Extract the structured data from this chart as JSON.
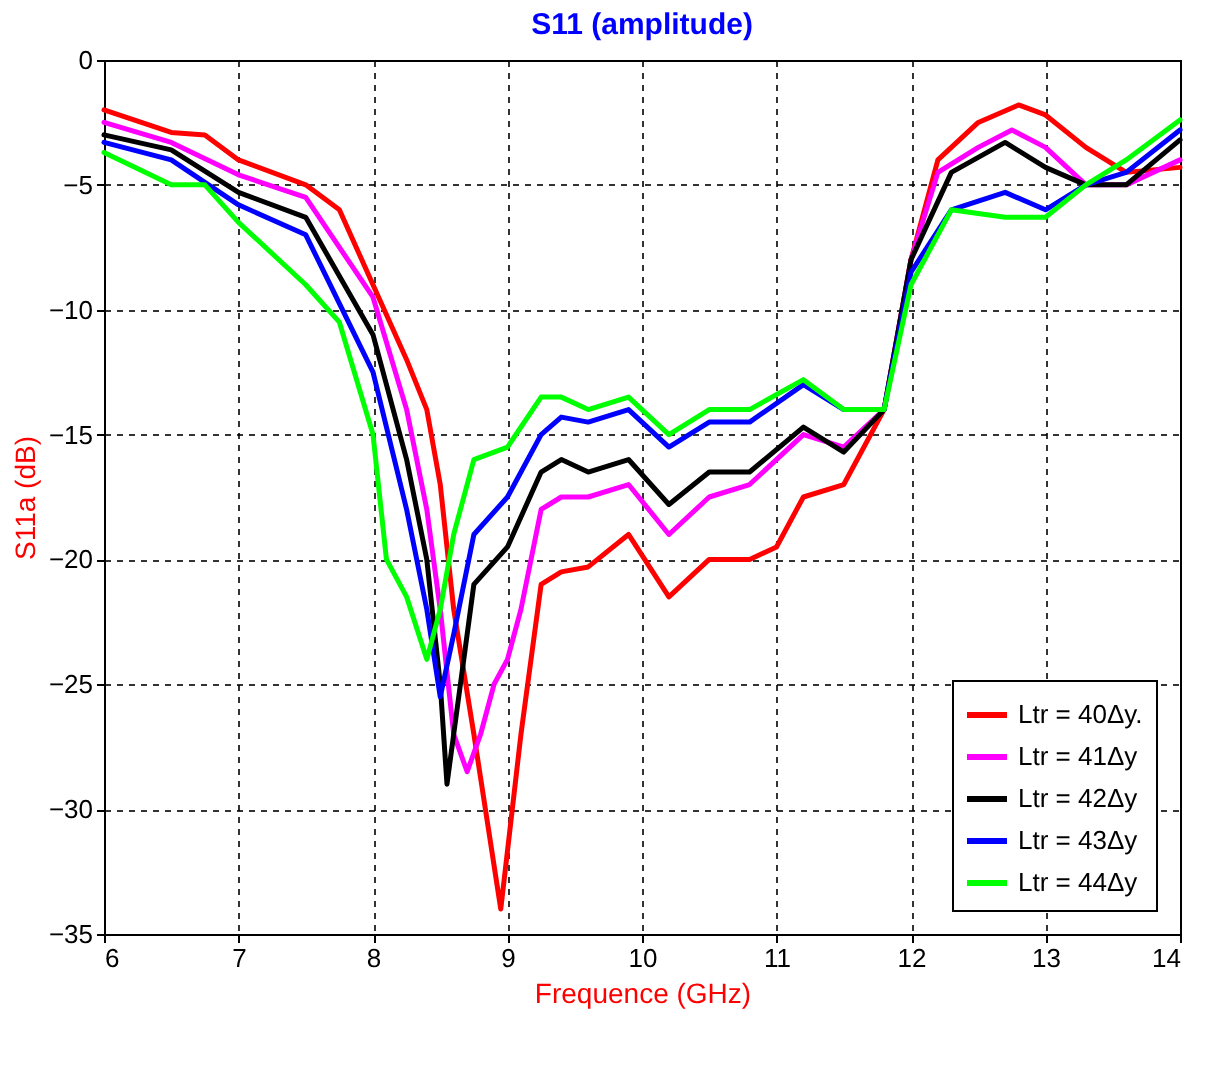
{
  "chart_data": {
    "type": "line",
    "title": "S11 (amplitude)",
    "xlabel": "Frequence (GHz)",
    "ylabel": "S11a (dB)",
    "xlim": [
      6,
      14
    ],
    "xticks": [
      6,
      7,
      8,
      9,
      10,
      11,
      12,
      13,
      14
    ],
    "ylim": [
      -35,
      0
    ],
    "yticks": [
      -35,
      -30,
      -25,
      -20,
      -15,
      -10,
      -5,
      0
    ],
    "grid": true,
    "legend": "bottom right",
    "line_style": "solid",
    "marker": "none",
    "series": [
      {
        "name": "Ltr = 40Δy.",
        "color": "#ff0000",
        "x": [
          6,
          6.5,
          6.75,
          7,
          7.5,
          7.75,
          8,
          8.25,
          8.4,
          8.5,
          8.6,
          8.75,
          8.95,
          9.1,
          9.25,
          9.4,
          9.6,
          9.9,
          10.2,
          10.5,
          10.8,
          11.0,
          11.2,
          11.5,
          11.8,
          12,
          12.2,
          12.5,
          12.8,
          13,
          13.3,
          13.6,
          14
        ],
        "values": [
          -2,
          -2.9,
          -3,
          -4,
          -5,
          -6,
          -9,
          -12,
          -14,
          -17,
          -22,
          -27,
          -34,
          -27,
          -21,
          -20.5,
          -20.3,
          -19,
          -21.5,
          -20,
          -20,
          -19.5,
          -17.5,
          -17,
          -14,
          -8,
          -4,
          -2.5,
          -1.8,
          -2.2,
          -3.5,
          -4.5,
          -4.3
        ]
      },
      {
        "name": "Ltr = 41Δy",
        "color": "#ff00ff",
        "x": [
          6,
          6.5,
          7,
          7.5,
          8,
          8.25,
          8.4,
          8.5,
          8.6,
          8.7,
          8.8,
          8.9,
          9,
          9.1,
          9.25,
          9.4,
          9.6,
          9.9,
          10.2,
          10.5,
          10.8,
          11.2,
          11.5,
          11.8,
          12,
          12.2,
          12.5,
          12.75,
          13,
          13.3,
          13.6,
          14
        ],
        "values": [
          -2.5,
          -3.3,
          -4.6,
          -5.5,
          -9.5,
          -14,
          -18,
          -22,
          -27,
          -28.5,
          -27,
          -25,
          -24,
          -22,
          -18,
          -17.5,
          -17.5,
          -17,
          -19,
          -17.5,
          -17,
          -15,
          -15.5,
          -14,
          -8,
          -4.5,
          -3.5,
          -2.8,
          -3.5,
          -5,
          -5,
          -4
        ]
      },
      {
        "name": "Ltr = 42Δy",
        "color": "#000000",
        "x": [
          6,
          6.5,
          7,
          7.5,
          8,
          8.25,
          8.4,
          8.5,
          8.55,
          8.6,
          8.75,
          9,
          9.25,
          9.4,
          9.6,
          9.9,
          10.2,
          10.5,
          10.8,
          11.2,
          11.5,
          11.8,
          12,
          12.3,
          12.7,
          13,
          13.3,
          13.6,
          14
        ],
        "values": [
          -3,
          -3.6,
          -5.3,
          -6.3,
          -11,
          -16,
          -20,
          -25,
          -29,
          -27,
          -21,
          -19.5,
          -16.5,
          -16,
          -16.5,
          -16,
          -17.8,
          -16.5,
          -16.5,
          -14.7,
          -15.7,
          -14,
          -8,
          -4.5,
          -3.3,
          -4.3,
          -5,
          -5,
          -3.2
        ]
      },
      {
        "name": "Ltr = 43Δy",
        "color": "#0000ff",
        "x": [
          6,
          6.5,
          7,
          7.5,
          8,
          8.25,
          8.4,
          8.5,
          8.6,
          8.75,
          9,
          9.25,
          9.4,
          9.6,
          9.9,
          10.2,
          10.5,
          10.8,
          11.2,
          11.5,
          11.8,
          12,
          12.3,
          12.7,
          13,
          13.3,
          13.6,
          14
        ],
        "values": [
          -3.3,
          -4,
          -5.8,
          -7,
          -12.5,
          -18,
          -22,
          -25.5,
          -23,
          -19,
          -17.5,
          -15,
          -14.3,
          -14.5,
          -14,
          -15.5,
          -14.5,
          -14.5,
          -13,
          -14,
          -14,
          -8.5,
          -6,
          -5.3,
          -6,
          -5,
          -4.5,
          -2.8
        ]
      },
      {
        "name": "Ltr = 44Δy",
        "color": "#00ff00",
        "x": [
          6,
          6.5,
          6.75,
          7,
          7.5,
          7.75,
          8,
          8.1,
          8.25,
          8.4,
          8.5,
          8.6,
          8.75,
          9,
          9.25,
          9.4,
          9.6,
          9.9,
          10.2,
          10.5,
          10.8,
          11.2,
          11.5,
          11.8,
          12,
          12.3,
          12.7,
          13,
          13.3,
          13.6,
          14
        ],
        "values": [
          -3.7,
          -5,
          -5,
          -6.5,
          -9,
          -10.5,
          -15,
          -20,
          -21.5,
          -24,
          -22,
          -19,
          -16,
          -15.5,
          -13.5,
          -13.5,
          -14,
          -13.5,
          -15,
          -14,
          -14,
          -12.8,
          -14,
          -14,
          -9,
          -6,
          -6.3,
          -6.3,
          -5,
          -4,
          -2.4
        ]
      }
    ]
  }
}
